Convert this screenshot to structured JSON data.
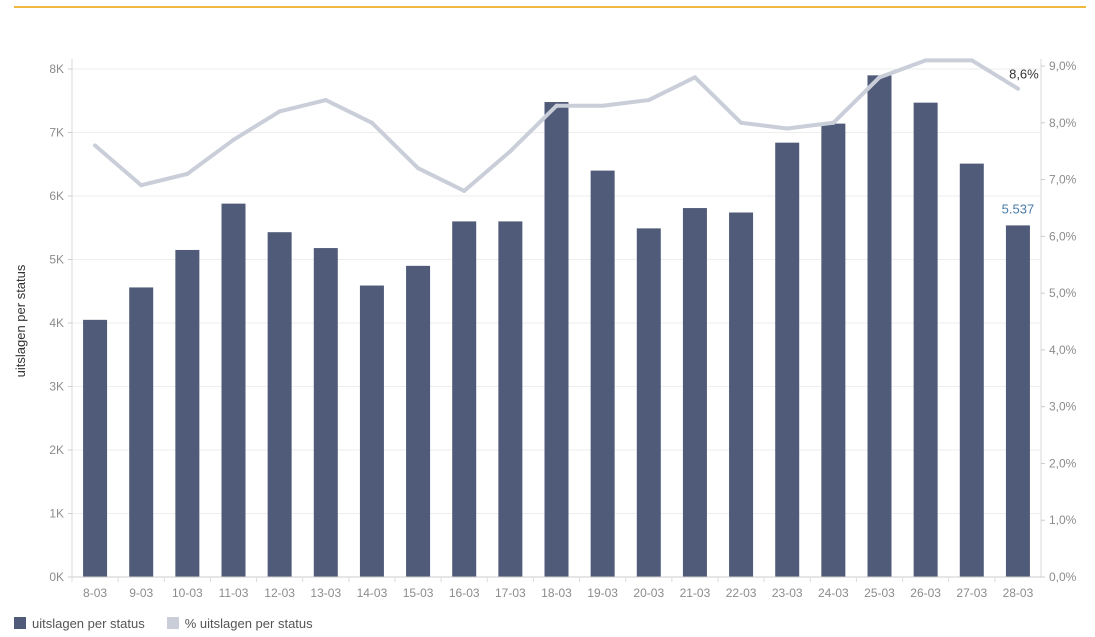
{
  "colors": {
    "bar": "#4f5b78",
    "line": "#c9ced9",
    "accent": "#f0b840",
    "bar_label": "#4a7aa8",
    "line_label": "#333333"
  },
  "chart_data": {
    "type": "bar",
    "categories": [
      "8-03",
      "9-03",
      "10-03",
      "11-03",
      "12-03",
      "13-03",
      "14-03",
      "15-03",
      "16-03",
      "17-03",
      "18-03",
      "19-03",
      "20-03",
      "21-03",
      "22-03",
      "23-03",
      "24-03",
      "25-03",
      "26-03",
      "27-03",
      "28-03"
    ],
    "series": [
      {
        "name": "uitslagen per status",
        "type": "bar",
        "axis": "left",
        "values": [
          4050,
          4560,
          5150,
          5880,
          5430,
          5180,
          4590,
          4900,
          5600,
          5600,
          7480,
          6400,
          5490,
          5810,
          5740,
          6840,
          7140,
          7900,
          7470,
          6510,
          5537
        ],
        "last_label": "5.537"
      },
      {
        "name": "% uitslagen per status",
        "type": "line",
        "axis": "right",
        "values": [
          7.6,
          6.9,
          7.1,
          7.7,
          8.2,
          8.4,
          8.0,
          7.2,
          6.8,
          7.5,
          8.3,
          8.3,
          8.4,
          8.8,
          8.0,
          7.9,
          8.0,
          8.8,
          9.1,
          9.1,
          8.6
        ],
        "last_label": "8,6%"
      }
    ],
    "ylabel": "uitslagen per status",
    "ylim": [
      0,
      8000
    ],
    "y_ticks": [
      "0K",
      "1K",
      "2K",
      "3K",
      "4K",
      "5K",
      "6K",
      "7K",
      "8K"
    ],
    "y2lim": [
      0,
      9
    ],
    "y2_ticks": [
      "0,0%",
      "1,0%",
      "2,0%",
      "3,0%",
      "4,0%",
      "5,0%",
      "6,0%",
      "7,0%",
      "8,0%",
      "9,0%"
    ],
    "grid": true,
    "legend_position": "bottom-left"
  }
}
